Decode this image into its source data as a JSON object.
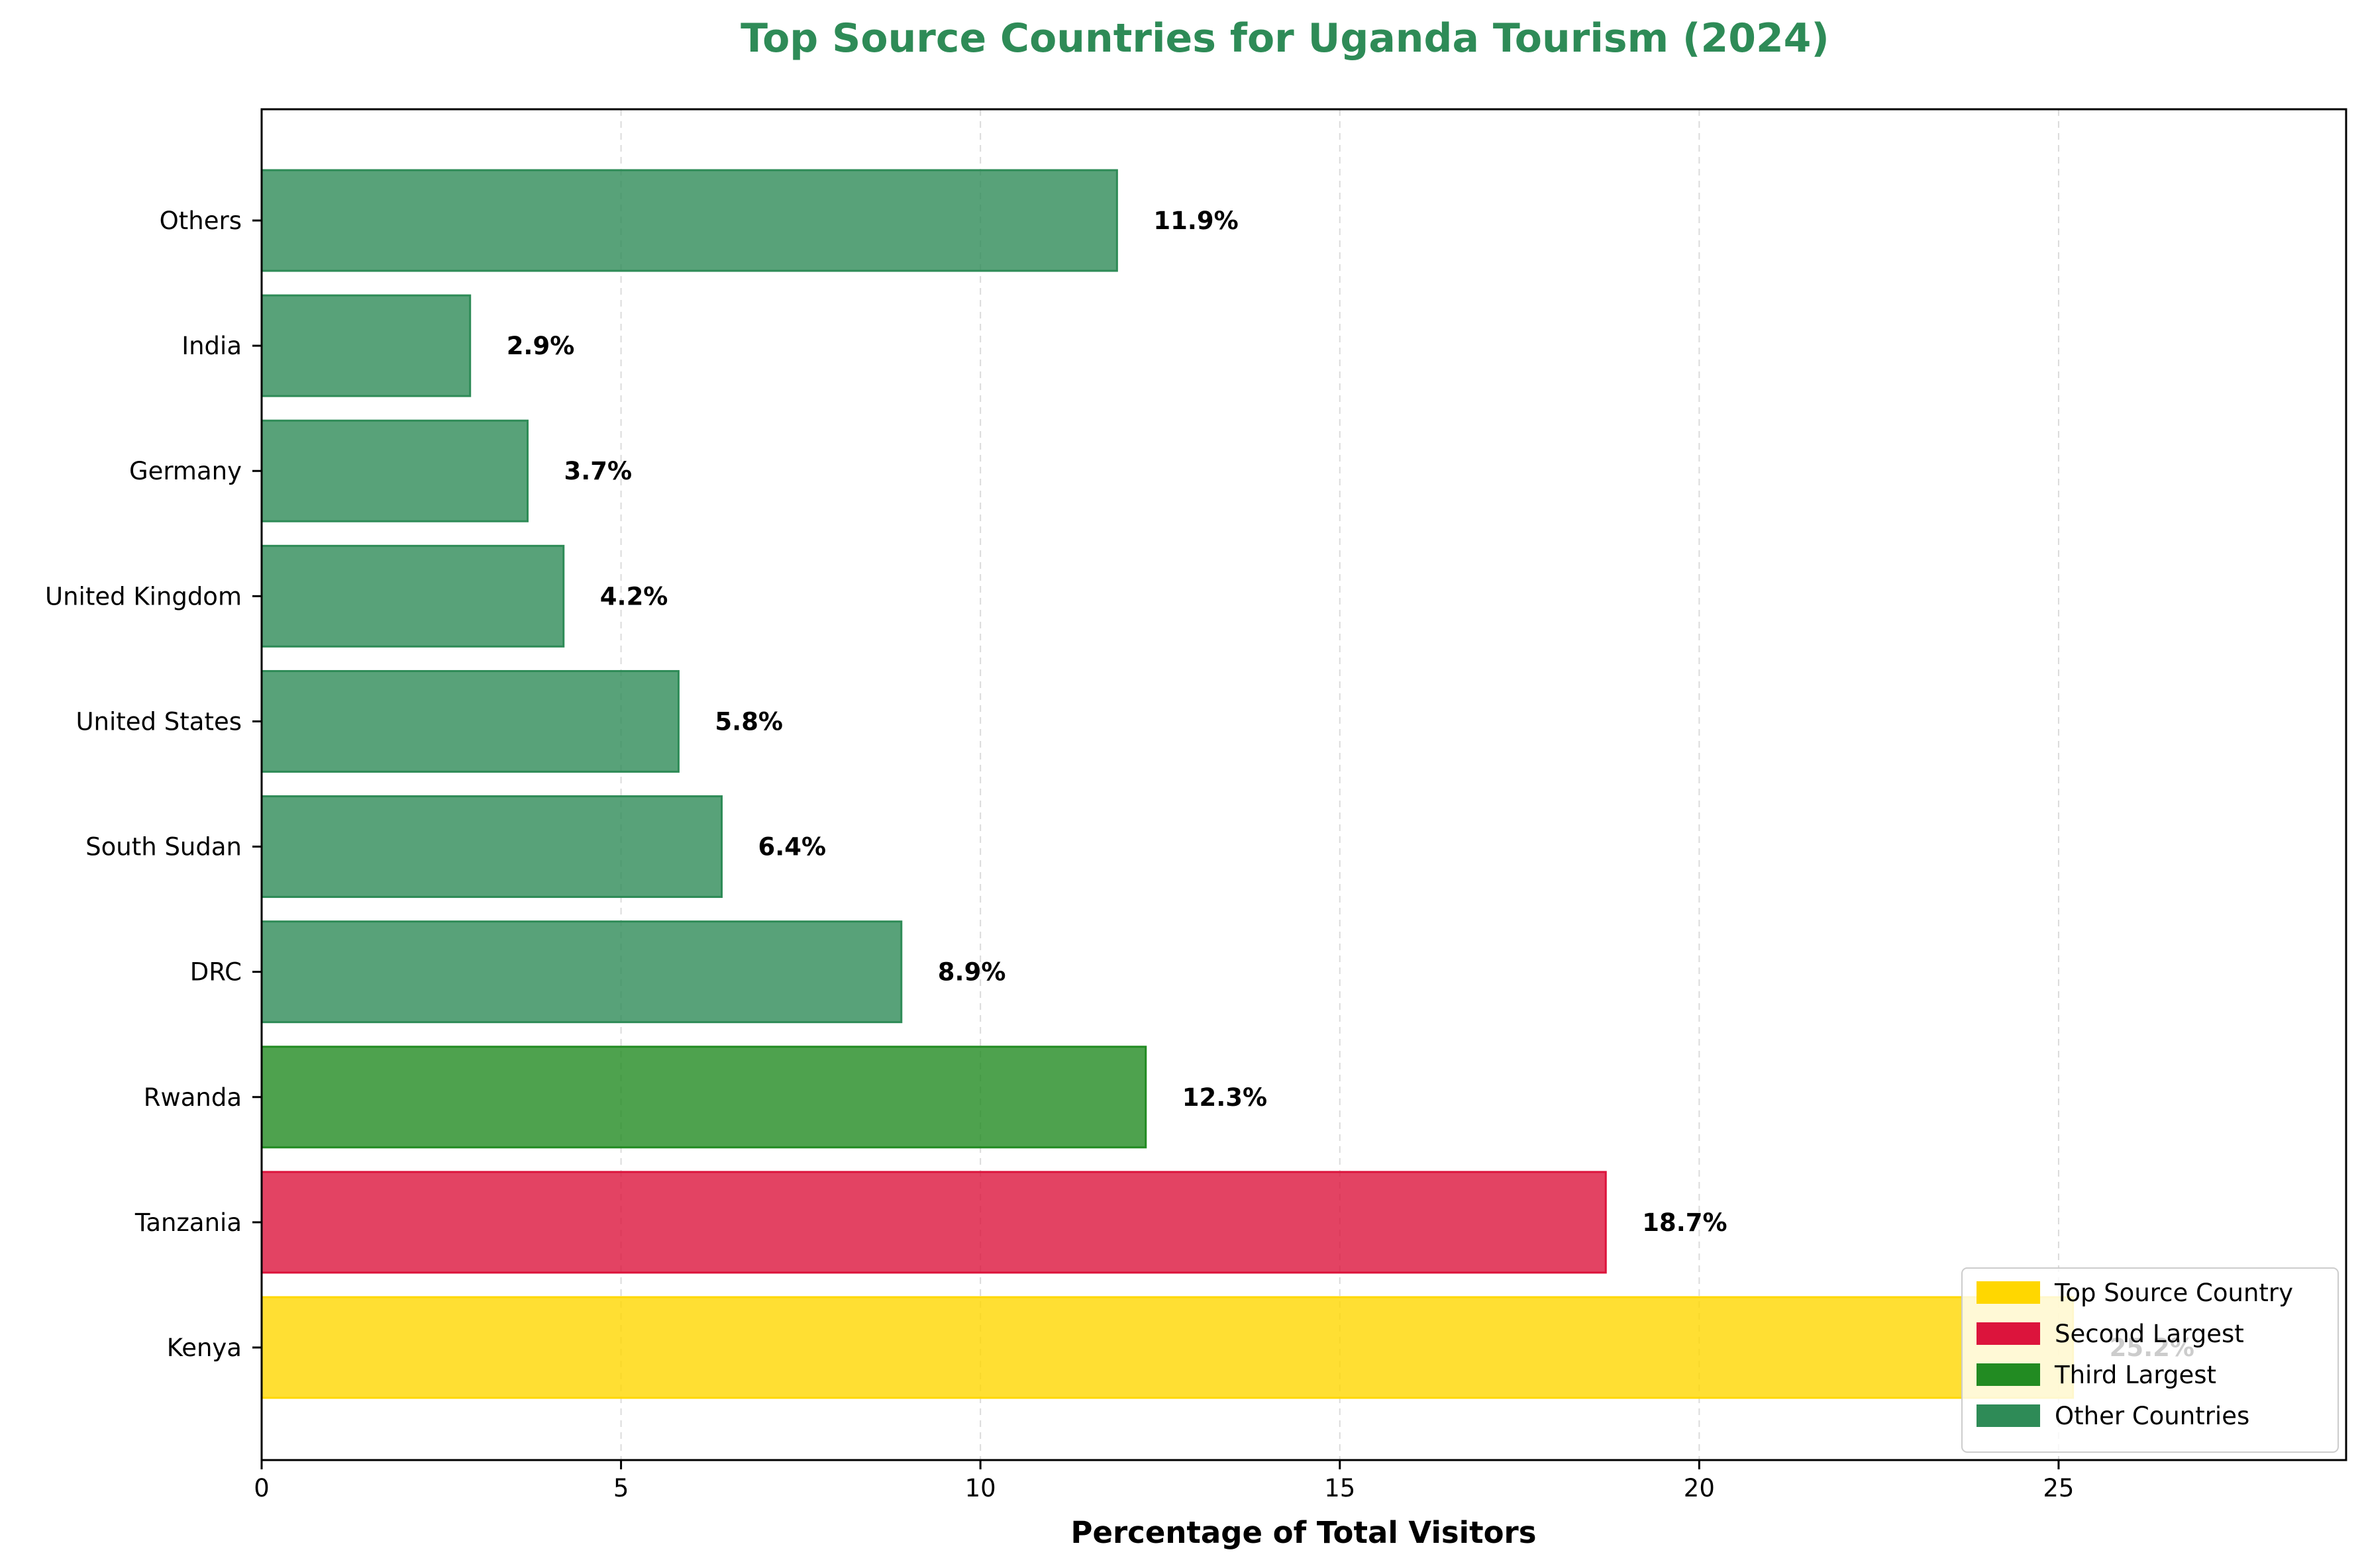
{
  "colors": {
    "title": "#2E8B57",
    "top": "#FFD700",
    "second": "#DC143C",
    "third": "#228B22",
    "other": "#2E8B57",
    "grid": "#cccccc"
  },
  "chart_data": {
    "type": "bar",
    "orientation": "horizontal",
    "title": "Top Source Countries for Uganda Tourism (2024)",
    "xlabel": "Percentage of Total Visitors",
    "ylabel": "",
    "xlim": [
      0,
      29
    ],
    "xticks": [
      0,
      5,
      10,
      15,
      20,
      25
    ],
    "grid": "x-axis dashed",
    "legend_position": "bottom-right",
    "value_suffix": "%",
    "categories": [
      "Kenya",
      "Tanzania",
      "Rwanda",
      "DRC",
      "South Sudan",
      "United States",
      "United Kingdom",
      "Germany",
      "India",
      "Others"
    ],
    "values": [
      25.2,
      18.7,
      12.3,
      8.9,
      6.4,
      5.8,
      4.2,
      3.7,
      2.9,
      11.9
    ],
    "bar_groups": [
      "top",
      "second",
      "third",
      "other",
      "other",
      "other",
      "other",
      "other",
      "other",
      "other"
    ],
    "legend": [
      {
        "group": "top",
        "label": "Top Source Country"
      },
      {
        "group": "second",
        "label": "Second Largest"
      },
      {
        "group": "third",
        "label": "Third Largest"
      },
      {
        "group": "other",
        "label": "Other Countries"
      }
    ]
  }
}
